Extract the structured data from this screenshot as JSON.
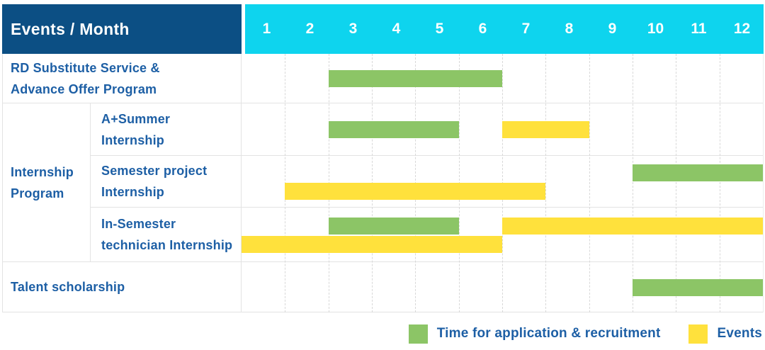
{
  "header": {
    "title": "Events / Month"
  },
  "chart_data": {
    "type": "gantt",
    "title": "Events / Month",
    "x_axis": {
      "label": "Month",
      "ticks": [
        "1",
        "2",
        "3",
        "4",
        "5",
        "6",
        "7",
        "8",
        "9",
        "10",
        "11",
        "12"
      ],
      "range": [
        1,
        12
      ]
    },
    "colors": {
      "recruitment": "#8cc566",
      "events": "#ffe13c"
    },
    "header_colors": {
      "label_bg": "#0c4f84",
      "months_bg": "#0ed4ee",
      "text": "#ffffff"
    },
    "label_text_color": "#1d5fa5",
    "group": {
      "label_lines": [
        "Internship",
        "Program"
      ],
      "first_row": 1,
      "row_span": 3
    },
    "rows": [
      {
        "label_lines": [
          "RD Substitute Service &",
          "Advance Offer Program"
        ],
        "group_child": false,
        "bars": [
          {
            "series": "recruitment",
            "start_month": 3,
            "end_month": 6,
            "lane": 0,
            "lane_count": 1
          }
        ]
      },
      {
        "label_lines": [
          "A+Summer",
          "Internship"
        ],
        "group_child": true,
        "bars": [
          {
            "series": "recruitment",
            "start_month": 3,
            "end_month": 5,
            "lane": 0,
            "lane_count": 1
          },
          {
            "series": "events",
            "start_month": 7,
            "end_month": 8,
            "lane": 0,
            "lane_count": 1
          }
        ]
      },
      {
        "label_lines": [
          "Semester project",
          "Internship"
        ],
        "group_child": true,
        "bars": [
          {
            "series": "recruitment",
            "start_month": 10,
            "end_month": 12,
            "lane": 0,
            "lane_count": 2
          },
          {
            "series": "events",
            "start_month": 2,
            "end_month": 7,
            "lane": 1,
            "lane_count": 2
          }
        ]
      },
      {
        "label_lines": [
          "In-Semester",
          "technician Internship"
        ],
        "group_child": true,
        "bars": [
          {
            "series": "recruitment",
            "start_month": 3,
            "end_month": 5,
            "lane": 0,
            "lane_count": 2
          },
          {
            "series": "events",
            "start_month": 7,
            "end_month": 12,
            "lane": 0,
            "lane_count": 2
          },
          {
            "series": "events",
            "start_month": 1,
            "end_month": 6,
            "lane": 1,
            "lane_count": 2
          }
        ]
      },
      {
        "label_lines": [
          "Talent scholarship"
        ],
        "group_child": false,
        "bars": [
          {
            "series": "recruitment",
            "start_month": 10,
            "end_month": 12,
            "lane": 0,
            "lane_count": 1
          }
        ]
      }
    ],
    "legend": [
      {
        "series": "recruitment",
        "label": "Time for application & recruitment",
        "color": "#8cc566"
      },
      {
        "series": "events",
        "label": "Events",
        "color": "#ffe13c"
      }
    ],
    "legend_position": "bottom-right",
    "grid": {
      "vertical_lines": "dashed",
      "horizontal_lines": "solid"
    }
  }
}
